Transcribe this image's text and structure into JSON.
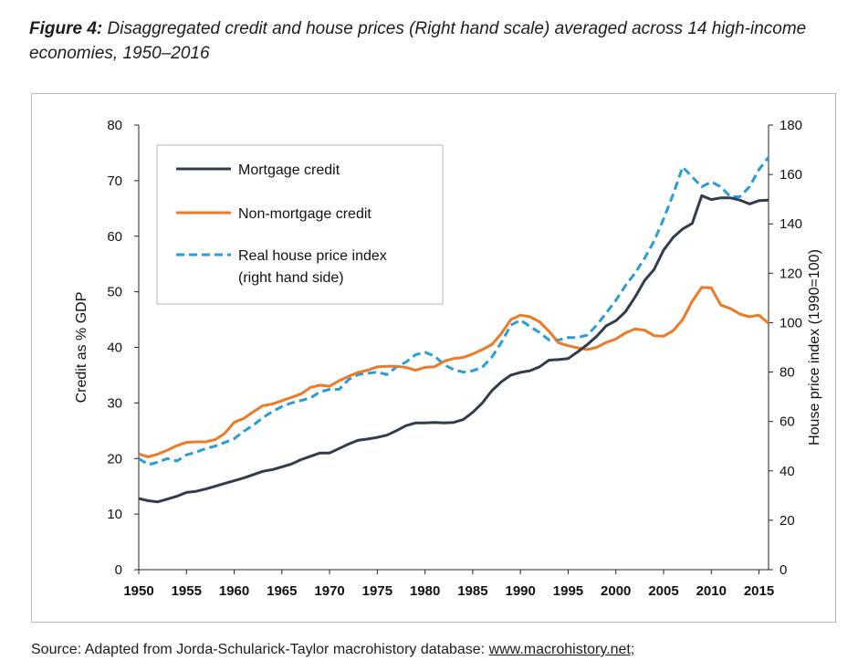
{
  "figure": {
    "label": "Figure 4:",
    "title": "Disaggregated credit and house prices (Right hand scale) averaged across 14 high-income economies, 1950–2016"
  },
  "source": {
    "text": "Source: Adapted from Jorda-Schularick-Taylor macrohistory database: ",
    "link_text": "www.macrohistory.net;"
  },
  "chart_data": {
    "type": "line",
    "ylabel": "Credit as % GDP",
    "y2label": "House price index (1990=100)",
    "xlim": [
      1950,
      2016
    ],
    "ylim": [
      0,
      80
    ],
    "y2lim": [
      0,
      180
    ],
    "x_ticks": [
      "1950",
      "1955",
      "1960",
      "1965",
      "1970",
      "1975",
      "1980",
      "1985",
      "1990",
      "1995",
      "2000",
      "2005",
      "2010",
      "2015"
    ],
    "y_ticks": [
      "0",
      "10",
      "20",
      "30",
      "40",
      "50",
      "60",
      "70",
      "80"
    ],
    "y2_ticks": [
      "0",
      "20",
      "40",
      "60",
      "80",
      "100",
      "120",
      "140",
      "160",
      "180"
    ],
    "grid": false,
    "legend_position": "top-left",
    "series": [
      {
        "name": "Mortgage credit",
        "axis": "left",
        "color": "#323c4e",
        "style": "solid",
        "x": [
          1950,
          1951,
          1952,
          1953,
          1954,
          1955,
          1956,
          1957,
          1958,
          1959,
          1960,
          1961,
          1962,
          1963,
          1964,
          1965,
          1966,
          1967,
          1968,
          1969,
          1970,
          1971,
          1972,
          1973,
          1974,
          1975,
          1976,
          1977,
          1978,
          1979,
          1980,
          1981,
          1982,
          1983,
          1984,
          1985,
          1986,
          1987,
          1988,
          1989,
          1990,
          1991,
          1992,
          1993,
          1994,
          1995,
          1996,
          1997,
          1998,
          1999,
          2000,
          2001,
          2002,
          2003,
          2004,
          2005,
          2006,
          2007,
          2008,
          2009,
          2010,
          2011,
          2012,
          2013,
          2014,
          2015,
          2016
        ],
        "y": [
          12.8,
          12.4,
          12.2,
          12.7,
          13.2,
          13.9,
          14.1,
          14.5,
          15.0,
          15.5,
          16.0,
          16.5,
          17.1,
          17.7,
          18.0,
          18.5,
          19.0,
          19.8,
          20.4,
          21.0,
          21.0,
          21.8,
          22.6,
          23.3,
          23.5,
          23.8,
          24.2,
          25.0,
          25.9,
          26.4,
          26.4,
          26.5,
          26.4,
          26.5,
          27.0,
          28.3,
          30.0,
          32.2,
          33.8,
          35.0,
          35.5,
          35.8,
          36.5,
          37.7,
          37.8,
          38.0,
          39.2,
          40.5,
          42.0,
          43.9,
          44.8,
          46.4,
          49.0,
          52.0,
          54.0,
          57.5,
          59.8,
          61.3,
          62.3,
          67.3,
          66.6,
          66.9,
          66.9,
          66.5,
          65.8,
          66.4,
          66.5
        ]
      },
      {
        "name": "Non-mortgage credit",
        "axis": "left",
        "color": "#ec7a26",
        "style": "solid",
        "x": [
          1950,
          1951,
          1952,
          1953,
          1954,
          1955,
          1956,
          1957,
          1958,
          1959,
          1960,
          1961,
          1962,
          1963,
          1964,
          1965,
          1966,
          1967,
          1968,
          1969,
          1970,
          1971,
          1972,
          1973,
          1974,
          1975,
          1976,
          1977,
          1978,
          1979,
          1980,
          1981,
          1982,
          1983,
          1984,
          1985,
          1986,
          1987,
          1988,
          1989,
          1990,
          1991,
          1992,
          1993,
          1994,
          1995,
          1996,
          1997,
          1998,
          1999,
          2000,
          2001,
          2002,
          2003,
          2004,
          2005,
          2006,
          2007,
          2008,
          2009,
          2010,
          2011,
          2012,
          2013,
          2014,
          2015,
          2016
        ],
        "y": [
          20.8,
          20.3,
          20.8,
          21.5,
          22.3,
          22.9,
          23.0,
          23.0,
          23.4,
          24.5,
          26.5,
          27.2,
          28.4,
          29.5,
          29.8,
          30.4,
          31.0,
          31.6,
          32.8,
          33.2,
          33.0,
          34.0,
          34.8,
          35.5,
          35.9,
          36.5,
          36.6,
          36.6,
          36.4,
          35.9,
          36.4,
          36.5,
          37.5,
          38.0,
          38.2,
          38.8,
          39.6,
          40.5,
          42.5,
          45.0,
          45.8,
          45.5,
          44.6,
          42.9,
          40.8,
          40.3,
          39.9,
          39.6,
          40.0,
          40.9,
          41.5,
          42.6,
          43.3,
          43.1,
          42.1,
          42.0,
          43.0,
          45.0,
          48.3,
          50.8,
          50.7,
          47.6,
          47.0,
          46.0,
          45.5,
          45.8,
          44.3
        ]
      },
      {
        "name": "Real house price index\n(right hand side)",
        "axis": "right",
        "color": "#2a9dd8",
        "style": "dashed",
        "x": [
          1950,
          1951,
          1952,
          1953,
          1954,
          1955,
          1956,
          1957,
          1958,
          1959,
          1960,
          1961,
          1962,
          1963,
          1964,
          1965,
          1966,
          1967,
          1968,
          1969,
          1970,
          1971,
          1972,
          1973,
          1974,
          1975,
          1976,
          1977,
          1978,
          1979,
          1980,
          1981,
          1982,
          1983,
          1984,
          1985,
          1986,
          1987,
          1988,
          1989,
          1990,
          1991,
          1992,
          1993,
          1994,
          1995,
          1996,
          1997,
          1998,
          1999,
          2000,
          2001,
          2002,
          2003,
          2004,
          2005,
          2006,
          2007,
          2008,
          2009,
          2010,
          2011,
          2012,
          2013,
          2014,
          2015,
          2016
        ],
        "y": [
          45,
          42.5,
          43.5,
          45,
          44,
          46.5,
          47.5,
          49,
          50,
          51.5,
          53,
          56,
          58.5,
          61.5,
          64,
          66,
          67.5,
          68.5,
          69.5,
          72,
          73,
          73,
          77,
          79,
          79.5,
          80,
          79,
          82,
          84,
          87,
          88,
          86.5,
          83,
          81,
          80,
          80.5,
          82,
          86,
          92,
          99,
          101,
          98.5,
          96,
          93,
          93,
          94,
          94,
          95,
          99,
          104,
          109,
          115,
          120,
          126,
          133,
          142,
          152,
          163,
          159,
          155,
          157,
          155,
          151,
          151,
          155,
          162,
          167
        ]
      }
    ]
  }
}
